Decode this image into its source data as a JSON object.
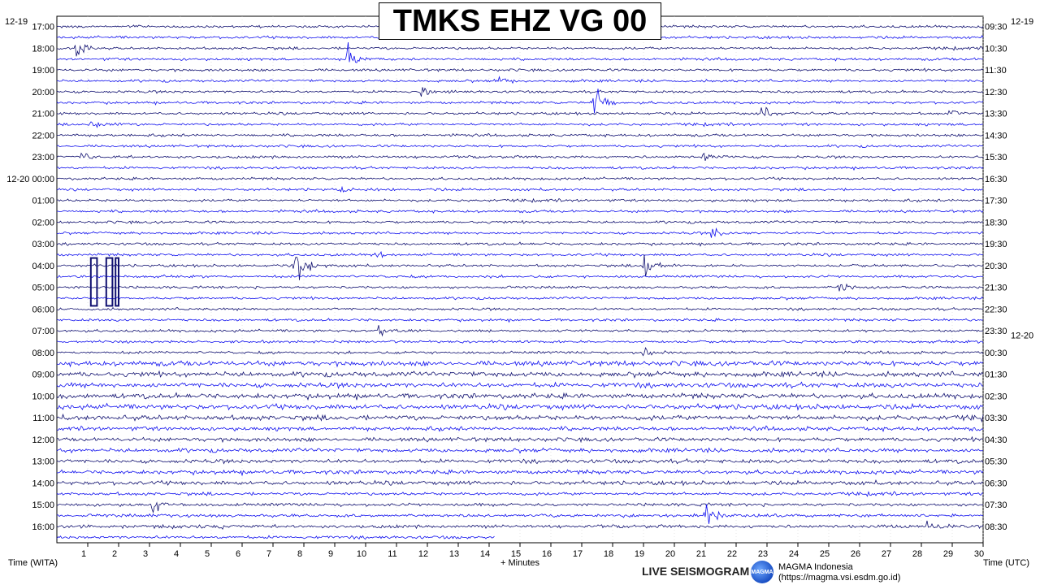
{
  "title": "TMKS EHZ VG 00",
  "footer": {
    "left_axis_title": "Time (WITA)",
    "right_axis_title": "Time (UTC)",
    "x_axis_title": "+ Minutes",
    "brand": "LIVE SEISMOGRAM",
    "logo_text": "MAGMA",
    "magma_name": "MAGMA Indonesia",
    "magma_url": "(https://magma.vsi.esdm.go.id)"
  },
  "colors": {
    "trace_dark": "#101070",
    "trace_light": "#1010ee",
    "background": "#ffffff",
    "grid": "#000000"
  },
  "chart_data": {
    "type": "helicorder",
    "title": "TMKS EHZ VG 00",
    "xlabel": "+ Minutes",
    "xlim": [
      0,
      30
    ],
    "x_ticks": [
      1,
      2,
      3,
      4,
      5,
      6,
      7,
      8,
      9,
      10,
      11,
      12,
      13,
      14,
      15,
      16,
      17,
      18,
      19,
      20,
      21,
      22,
      23,
      24,
      25,
      26,
      27,
      28,
      29,
      30
    ],
    "left_labels": [
      {
        "row": 0,
        "text": "17:00",
        "date": "12-19"
      },
      {
        "row": 2,
        "text": "18:00"
      },
      {
        "row": 4,
        "text": "19:00"
      },
      {
        "row": 6,
        "text": "20:00"
      },
      {
        "row": 8,
        "text": "21:00"
      },
      {
        "row": 10,
        "text": "22:00"
      },
      {
        "row": 12,
        "text": "23:00"
      },
      {
        "row": 14,
        "text": "12-20 00:00"
      },
      {
        "row": 16,
        "text": "01:00"
      },
      {
        "row": 18,
        "text": "02:00"
      },
      {
        "row": 20,
        "text": "03:00"
      },
      {
        "row": 22,
        "text": "04:00"
      },
      {
        "row": 24,
        "text": "05:00"
      },
      {
        "row": 26,
        "text": "06:00"
      },
      {
        "row": 28,
        "text": "07:00"
      },
      {
        "row": 30,
        "text": "08:00"
      },
      {
        "row": 32,
        "text": "09:00"
      },
      {
        "row": 34,
        "text": "10:00"
      },
      {
        "row": 36,
        "text": "11:00"
      },
      {
        "row": 38,
        "text": "12:00"
      },
      {
        "row": 40,
        "text": "13:00"
      },
      {
        "row": 42,
        "text": "14:00"
      },
      {
        "row": 44,
        "text": "15:00"
      },
      {
        "row": 46,
        "text": "16:00"
      }
    ],
    "right_labels": [
      {
        "row": 0,
        "text": "09:30"
      },
      {
        "row": 2,
        "text": "10:30"
      },
      {
        "row": 4,
        "text": "11:30"
      },
      {
        "row": 6,
        "text": "12:30"
      },
      {
        "row": 8,
        "text": "13:30"
      },
      {
        "row": 10,
        "text": "14:30"
      },
      {
        "row": 12,
        "text": "15:30"
      },
      {
        "row": 14,
        "text": "16:30"
      },
      {
        "row": 16,
        "text": "17:30"
      },
      {
        "row": 18,
        "text": "18:30"
      },
      {
        "row": 20,
        "text": "19:30"
      },
      {
        "row": 22,
        "text": "20:30"
      },
      {
        "row": 24,
        "text": "21:30"
      },
      {
        "row": 26,
        "text": "22:30"
      },
      {
        "row": 28,
        "text": "23:30"
      },
      {
        "row": 30,
        "text": "00:30"
      },
      {
        "row": 32,
        "text": "01:30"
      },
      {
        "row": 34,
        "text": "02:30"
      },
      {
        "row": 36,
        "text": "03:30"
      },
      {
        "row": 38,
        "text": "04:30"
      },
      {
        "row": 40,
        "text": "05:30"
      },
      {
        "row": 42,
        "text": "06:30"
      },
      {
        "row": 44,
        "text": "07:30"
      },
      {
        "row": 46,
        "text": "08:30"
      }
    ],
    "date_labels_left": [
      "12-19"
    ],
    "date_labels_right": [
      {
        "row": 0,
        "text": "12-19",
        "position": "top"
      },
      {
        "row": 29,
        "text": "12-20"
      }
    ],
    "row_count": 48,
    "last_row_end_minute": 14.2,
    "events": [
      {
        "row": 2,
        "minute": 0.6,
        "amp": 1.0
      },
      {
        "row": 3,
        "minute": 9.4,
        "amp": 1.2
      },
      {
        "row": 5,
        "minute": 14.2,
        "amp": 0.4
      },
      {
        "row": 6,
        "minute": 11.8,
        "amp": 0.5
      },
      {
        "row": 7,
        "minute": 17.4,
        "amp": 1.3
      },
      {
        "row": 8,
        "minute": 28.9,
        "amp": 0.5
      },
      {
        "row": 9,
        "minute": 1.1,
        "amp": 0.7
      },
      {
        "row": 8,
        "minute": 22.8,
        "amp": 0.7
      },
      {
        "row": 12,
        "minute": 0.8,
        "amp": 0.6
      },
      {
        "row": 12,
        "minute": 20.9,
        "amp": 0.6
      },
      {
        "row": 15,
        "minute": 9.2,
        "amp": 0.4
      },
      {
        "row": 19,
        "minute": 21.2,
        "amp": 0.8
      },
      {
        "row": 21,
        "minute": 10.3,
        "amp": 0.5
      },
      {
        "row": 22,
        "minute": 7.7,
        "amp": 2.2
      },
      {
        "row": 22,
        "minute": 19.0,
        "amp": 2.0
      },
      {
        "row": 24,
        "minute": 25.2,
        "amp": 0.8
      },
      {
        "row": 28,
        "minute": 10.4,
        "amp": 0.8
      },
      {
        "row": 30,
        "minute": 19.0,
        "amp": 0.9
      },
      {
        "row": 44,
        "minute": 3.1,
        "amp": 0.9
      },
      {
        "row": 45,
        "minute": 21.0,
        "amp": 1.6
      },
      {
        "row": 46,
        "minute": 28.2,
        "amp": 1.0
      }
    ],
    "saturation_blocks": [
      {
        "row": 22,
        "minute_start": 1.1,
        "minute_end": 1.3
      },
      {
        "row": 22,
        "minute_start": 1.6,
        "minute_end": 1.8
      },
      {
        "row": 22,
        "minute_start": 1.9,
        "minute_end": 2.0
      }
    ],
    "noise_levels_by_band": [
      {
        "rows": [
          0,
          30
        ],
        "level": 0.18
      },
      {
        "rows": [
          31,
          36
        ],
        "level": 0.35
      },
      {
        "rows": [
          37,
          42
        ],
        "level": 0.28
      },
      {
        "rows": [
          43,
          47
        ],
        "level": 0.22
      }
    ]
  }
}
